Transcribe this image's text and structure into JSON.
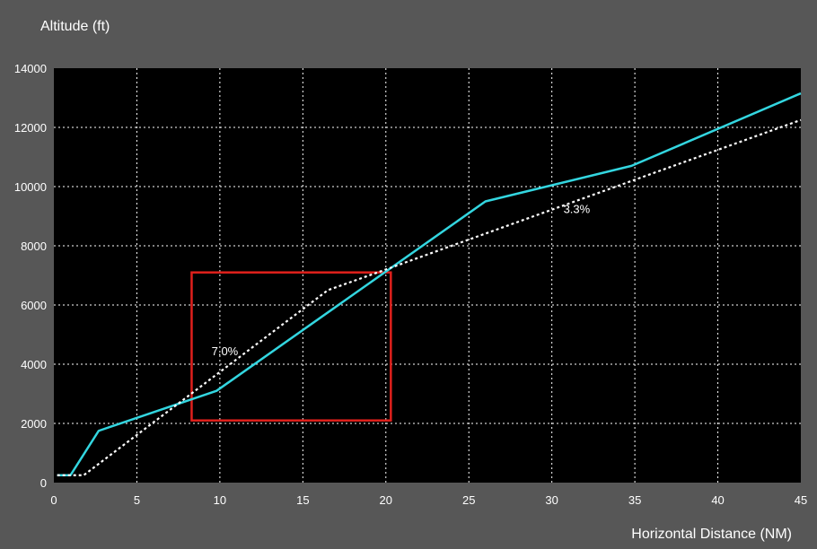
{
  "chart_data": {
    "type": "line",
    "ylabel": "Altitude (ft)",
    "xlabel": "Horizontal Distance (NM)",
    "xlim": [
      0,
      45
    ],
    "ylim": [
      0,
      14000
    ],
    "x_ticks": [
      "0",
      "5",
      "10",
      "15",
      "20",
      "25",
      "30",
      "35",
      "40",
      "45"
    ],
    "y_ticks": [
      "0",
      "2000",
      "4000",
      "6000",
      "8000",
      "10000",
      "12000",
      "14000"
    ],
    "grid": true,
    "background_color": "#000000",
    "series": [
      {
        "style": "solid",
        "color": "#33d6e0",
        "points": [
          [
            0.2,
            250
          ],
          [
            1.0,
            250
          ],
          [
            2.7,
            1750
          ],
          [
            9.8,
            3100
          ],
          [
            26.0,
            9500
          ],
          [
            34.8,
            10700
          ],
          [
            45.0,
            13150
          ]
        ]
      },
      {
        "style": "dotted",
        "color": "#ffffff",
        "points": [
          [
            0.2,
            250
          ],
          [
            1.8,
            250
          ],
          [
            16.5,
            6500
          ],
          [
            20.0,
            7200
          ],
          [
            45.0,
            12250
          ]
        ]
      }
    ],
    "annotations": [
      {
        "text": "7.0%",
        "x": 10.3,
        "y": 4300
      },
      {
        "text": "3.3%",
        "x": 31.5,
        "y": 9100
      }
    ],
    "highlight_box": {
      "x0": 8.3,
      "x1": 20.3,
      "y0": 2100,
      "y1": 7100,
      "color": "#e0201c"
    }
  }
}
